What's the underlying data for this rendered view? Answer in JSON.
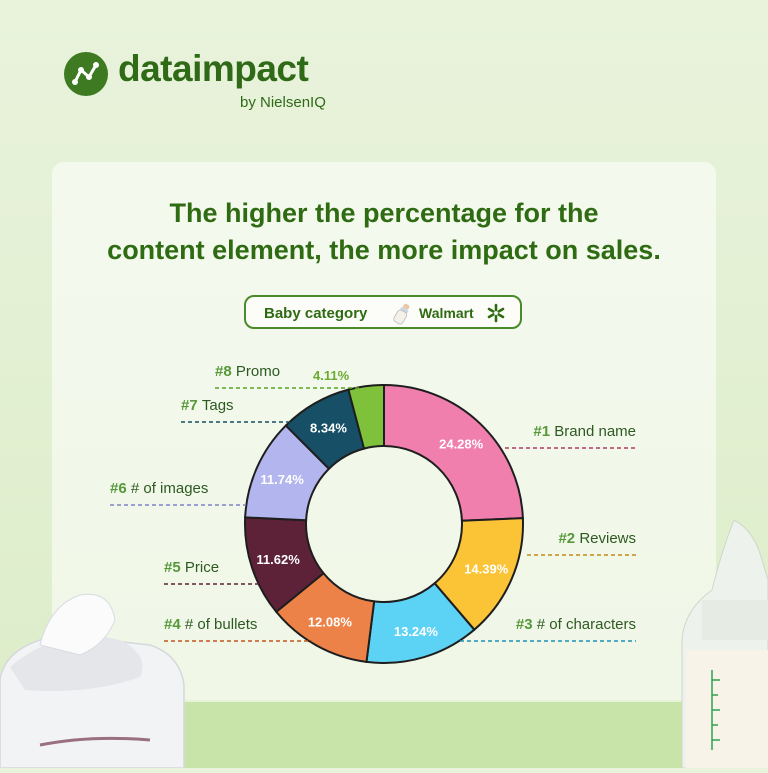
{
  "brand": {
    "name": "dataimpact",
    "sub": "by NielsenIQ"
  },
  "headline": {
    "line1": "The higher the percentage for the",
    "line2": "content element, the more impact on sales."
  },
  "badge": {
    "category": "Baby category",
    "retailer": "Walmart"
  },
  "chart_data": {
    "type": "pie",
    "donut": true,
    "categories": [
      "#1 Brand name",
      "#2 Reviews",
      "#3 # of characters",
      "#4 # of bullets",
      "#5 Price",
      "#6 # of images",
      "#7 Tags",
      "#8 Promo"
    ],
    "values": [
      24.28,
      14.39,
      13.24,
      12.08,
      11.62,
      11.74,
      8.34,
      4.11
    ],
    "value_labels": [
      "24.28%",
      "14.39%",
      "13.24%",
      "12.08%",
      "11.62%",
      "11.74%",
      "8.34%",
      "4.11%"
    ],
    "colors": [
      "#f07fae",
      "#fbc436",
      "#5cd2f5",
      "#ed8249",
      "#5e2238",
      "#b3b5ef",
      "#164f66",
      "#7fc13a"
    ],
    "legend": "labels around the ring, left and right"
  }
}
